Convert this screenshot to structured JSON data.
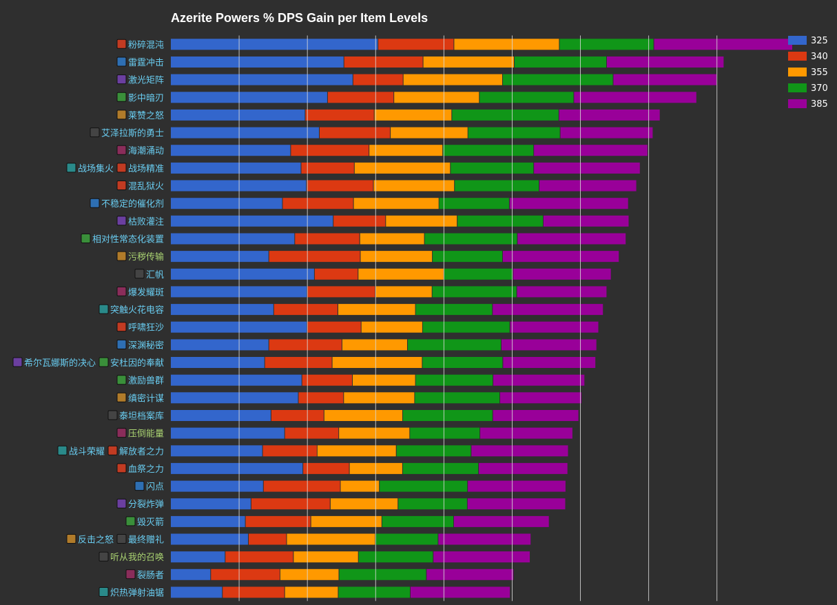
{
  "chart_data": {
    "type": "bar",
    "orientation": "horizontal",
    "stacked": true,
    "title": "Azerite Powers % DPS Gain per Item Levels",
    "xlabel": "",
    "ylabel": "",
    "xlim": [
      0,
      22
    ],
    "grid": true,
    "legend_position": "top-right",
    "categories": [
      "粉碎混沌",
      "雷霆冲击",
      "激光矩阵",
      "影中暗刃",
      "莱赞之怒",
      "艾泽拉斯的勇士",
      "海潮涌动",
      "战场集火 / 战场精准",
      "混乱狱火",
      "不稳定的催化剂",
      "枯败灌注",
      "相对性常态化装置",
      "污秽传输",
      "汇帆",
      "爆发耀斑",
      "突触火花电容",
      "呼啸狂沙",
      "深渊秘密",
      "希尔瓦娜斯的决心 / 安杜因的奉献",
      "激励兽群",
      "缜密计谋",
      "泰坦档案库",
      "压倒能量",
      "战斗荣耀 / 解放者之力",
      "血祭之力",
      "闪点",
      "分裂炸弹",
      "毁灭箭",
      "反击之怒 / 最终赠礼",
      "听从我的召唤",
      "裂肠者",
      "炽热弹射油锯"
    ],
    "label_colors": [
      "#69ccf0",
      "#69ccf0",
      "#69ccf0",
      "#69ccf0",
      "#69ccf0",
      "#69ccf0",
      "#69ccf0",
      "#69ccf0",
      "#69ccf0",
      "#69ccf0",
      "#69ccf0",
      "#69ccf0",
      "#a9d271",
      "#69ccf0",
      "#69ccf0",
      "#69ccf0",
      "#69ccf0",
      "#69ccf0",
      "#69ccf0",
      "#69ccf0",
      "#69ccf0",
      "#69ccf0",
      "#a9d271",
      "#69ccf0",
      "#69ccf0",
      "#69ccf0",
      "#69ccf0",
      "#69ccf0",
      "#69ccf0",
      "#a9d271",
      "#69ccf0",
      "#69ccf0"
    ],
    "series": [
      {
        "name": "325",
        "color": "#3366cc",
        "values": [
          7.6,
          6.35,
          6.68,
          5.75,
          4.93,
          5.45,
          4.4,
          4.78,
          4.98,
          4.1,
          5.96,
          4.55,
          3.6,
          5.27,
          5.0,
          3.78,
          5.0,
          3.6,
          3.45,
          4.81,
          4.68,
          3.68,
          4.18,
          3.37,
          4.85,
          3.4,
          2.95,
          2.74,
          2.85,
          2.0,
          1.47,
          1.9
        ]
      },
      {
        "name": "340",
        "color": "#dc3912",
        "values": [
          2.78,
          2.9,
          1.84,
          2.43,
          2.53,
          2.6,
          2.87,
          1.95,
          2.45,
          2.6,
          1.92,
          2.38,
          3.35,
          1.6,
          2.5,
          2.35,
          1.98,
          2.68,
          2.47,
          1.85,
          1.66,
          1.94,
          1.98,
          2.0,
          1.7,
          2.82,
          2.9,
          2.4,
          1.4,
          2.5,
          2.54,
          2.28
        ]
      },
      {
        "name": "355",
        "color": "#ff9900",
        "values": [
          3.86,
          3.34,
          3.64,
          3.13,
          2.84,
          2.84,
          2.7,
          3.52,
          2.97,
          3.13,
          2.62,
          2.37,
          2.64,
          3.14,
          2.08,
          2.84,
          2.25,
          2.4,
          3.3,
          2.31,
          2.6,
          2.88,
          2.6,
          2.9,
          1.95,
          1.43,
          2.48,
          2.6,
          3.25,
          2.38,
          2.16,
          1.96
        ]
      },
      {
        "name": "370",
        "color": "#109618",
        "values": [
          3.46,
          3.38,
          4.05,
          3.46,
          3.92,
          3.38,
          3.33,
          3.05,
          3.1,
          2.58,
          3.15,
          3.4,
          2.57,
          2.53,
          3.1,
          2.82,
          3.2,
          3.43,
          2.95,
          2.84,
          3.12,
          3.3,
          2.57,
          2.74,
          2.78,
          3.23,
          2.54,
          2.63,
          2.3,
          2.74,
          3.2,
          2.64
        ]
      },
      {
        "name": "385",
        "color": "#990099",
        "values": [
          5.08,
          4.3,
          3.8,
          4.5,
          3.71,
          3.4,
          4.18,
          3.9,
          3.57,
          4.36,
          3.14,
          3.98,
          4.27,
          3.6,
          3.3,
          4.06,
          3.25,
          3.5,
          3.4,
          3.36,
          3.0,
          3.15,
          3.4,
          3.56,
          3.27,
          3.6,
          3.6,
          3.5,
          3.4,
          3.55,
          3.2,
          3.66
        ]
      }
    ]
  }
}
